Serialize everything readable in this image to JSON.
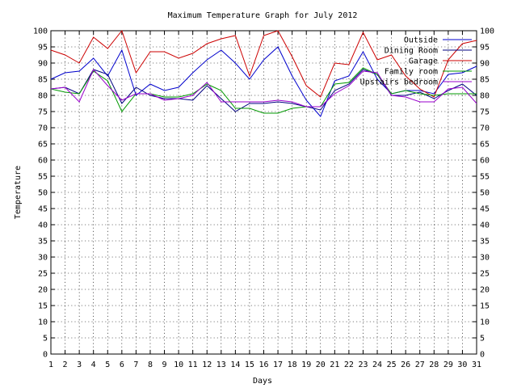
{
  "chart_data": {
    "type": "line",
    "title": "Maximum Temperature Graph for July 2012",
    "xlabel": "Days",
    "ylabel": "Temperature",
    "xlim": [
      1,
      31
    ],
    "ylim": [
      0,
      100
    ],
    "y_ticks": [
      0,
      5,
      10,
      15,
      20,
      25,
      30,
      35,
      40,
      45,
      50,
      55,
      60,
      65,
      70,
      75,
      80,
      85,
      90,
      95,
      100
    ],
    "x_ticks": [
      1,
      2,
      3,
      4,
      5,
      6,
      7,
      8,
      9,
      10,
      11,
      12,
      13,
      14,
      15,
      16,
      17,
      18,
      19,
      20,
      21,
      22,
      23,
      24,
      25,
      26,
      27,
      28,
      29,
      30,
      31
    ],
    "grid": true,
    "legend_position": "top-right",
    "x": [
      1,
      2,
      3,
      4,
      5,
      6,
      7,
      8,
      9,
      10,
      11,
      12,
      13,
      14,
      15,
      16,
      17,
      18,
      19,
      20,
      21,
      22,
      23,
      24,
      25,
      26,
      27,
      28,
      29,
      30,
      31
    ],
    "series": [
      {
        "name": "Outside",
        "color": "#0000cc",
        "values": [
          85,
          87,
          87.5,
          91.5,
          86,
          94,
          80,
          83.5,
          81.5,
          82.5,
          87,
          91,
          94,
          90,
          85,
          91,
          95,
          86,
          78.5,
          73.5,
          84.5,
          86,
          93.5,
          85,
          80.5,
          81.5,
          81.5,
          80.5,
          86.5,
          87,
          89
        ]
      },
      {
        "name": "Dining Room",
        "color": "#000080",
        "values": [
          82,
          82.5,
          80.5,
          88,
          86.5,
          77.5,
          82.5,
          80,
          79,
          79,
          78.5,
          83,
          79,
          75,
          77.5,
          77.5,
          78,
          77.5,
          76.5,
          75.5,
          81.5,
          83.5,
          88,
          86.5,
          80,
          80,
          81,
          79,
          81.5,
          83.5,
          80
        ]
      },
      {
        "name": "Garage",
        "color": "#cc0000",
        "values": [
          94,
          92.5,
          90,
          98,
          94.5,
          100,
          87,
          93.5,
          93.5,
          91.5,
          93,
          96,
          97.5,
          98.5,
          86,
          98.5,
          100,
          92,
          83,
          79.5,
          90,
          89.5,
          99.5,
          91,
          92.5,
          86,
          82,
          79.5,
          91,
          96,
          97
        ]
      },
      {
        "name": "Family room",
        "color": "#009900",
        "values": [
          82,
          81,
          80.5,
          87.5,
          84.5,
          75,
          80.5,
          80.5,
          79.5,
          79.5,
          80.5,
          83.5,
          81.5,
          76,
          76,
          74.5,
          74.5,
          76,
          76.5,
          76.5,
          83.5,
          84,
          88.5,
          86.5,
          80.5,
          81.5,
          80.5,
          80,
          80.5,
          80.5,
          80.5
        ]
      },
      {
        "name": "Upstairs bedroom",
        "color": "#9900cc",
        "values": [
          82,
          82.5,
          78,
          88,
          83,
          78.5,
          80.5,
          80.5,
          78.5,
          79,
          80,
          84,
          78,
          78,
          78,
          78,
          78.5,
          78,
          76.5,
          76.5,
          80.5,
          83,
          87.5,
          87,
          80,
          79.5,
          78,
          78,
          82,
          82.5,
          77.5
        ]
      }
    ]
  }
}
